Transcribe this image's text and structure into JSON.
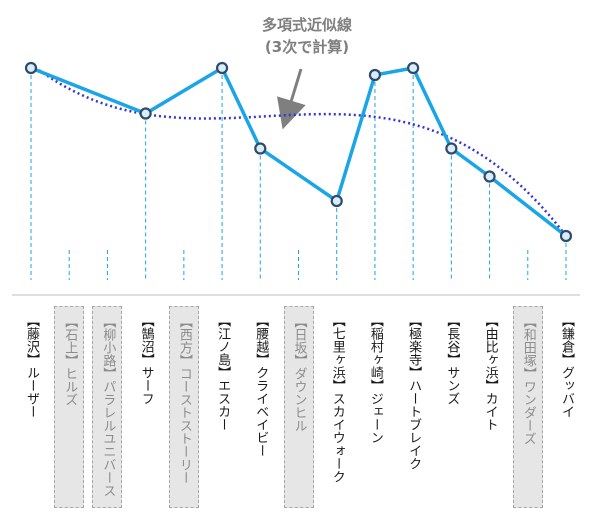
{
  "chart_data": {
    "type": "line",
    "categories": [
      "【藤沢】ルーザー",
      "【石上】ヒルズ",
      "【柳小路】パラレルユニバース",
      "【鵠沼】サーフ",
      "【西方】コーストストーリー",
      "【江ノ島】エスカー",
      "【腰越】クライベイビー",
      "【日坂】ダウンヒル",
      "【七里ヶ浜】スカイウォーク",
      "【稲村ヶ崎】ジェーン",
      "【極楽寺】ハートブレイク",
      "【長谷】サンズ",
      "【由比ヶ浜】カイト",
      "【和田塚】ワンダーズ",
      "【鎌倉】グッバイ"
    ],
    "inactive_categories": [
      "【石上】ヒルズ",
      "【柳小路】パラレルユニバース",
      "【西方】コーストストーリー",
      "【日坂】ダウンヒル",
      "【和田塚】ワンダーズ"
    ],
    "points": [
      {
        "category": "【藤沢】ルーザー",
        "value": 6.0
      },
      {
        "category": "【鵠沼】サーフ",
        "value": 4.7
      },
      {
        "category": "【江ノ島】エスカー",
        "value": 6.0
      },
      {
        "category": "【腰越】クライベイビー",
        "value": 3.7
      },
      {
        "category": "【七里ヶ浜】スカイウォーク",
        "value": 2.2
      },
      {
        "category": "【稲村ヶ崎】ジェーン",
        "value": 5.8
      },
      {
        "category": "【極楽寺】ハートブレイク",
        "value": 6.0
      },
      {
        "category": "【長谷】サンズ",
        "value": 3.7
      },
      {
        "category": "【由比ヶ浜】カイト",
        "value": 2.9
      },
      {
        "category": "【鎌倉】グッバイ",
        "value": 1.2
      }
    ],
    "trendline": {
      "type": "polynomial",
      "order": 3,
      "label": "多項式近似線\n(3次で計算)"
    },
    "ylim": [
      0,
      7.5
    ],
    "grid": false,
    "colors": {
      "line": "#1aa6e6",
      "marker_edge": "#2f4a6b",
      "trend": "#3535d6",
      "drop": "#1aa6e6",
      "axis": "#bfbfbf"
    }
  },
  "annotation": {
    "line1": "多項式近似線",
    "line2": "(3次で計算)"
  }
}
